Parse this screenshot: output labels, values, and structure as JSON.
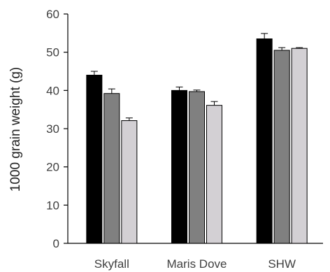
{
  "chart_data": {
    "type": "bar",
    "title": "",
    "xlabel": "",
    "ylabel": "1000 grain weight (g)",
    "ylim": [
      0,
      60
    ],
    "yticks": [
      0,
      10,
      20,
      30,
      40,
      50,
      60
    ],
    "grid": false,
    "legend": "none",
    "categories": [
      "Skyfall",
      "Maris Dove",
      "SHW"
    ],
    "series": [
      {
        "color": "#000000",
        "values": [
          44.0,
          40.0,
          53.5
        ],
        "errors": [
          1.0,
          0.9,
          1.4
        ]
      },
      {
        "color": "#808080",
        "values": [
          39.2,
          39.7,
          50.5
        ],
        "errors": [
          1.2,
          0.4,
          0.7
        ]
      },
      {
        "color": "#d3d0d4",
        "values": [
          32.1,
          36.1,
          51.0
        ],
        "errors": [
          0.7,
          1.0,
          0.2
        ]
      }
    ]
  }
}
